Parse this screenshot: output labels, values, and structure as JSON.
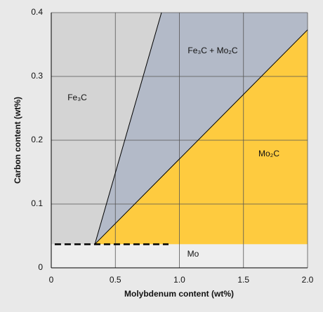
{
  "chart_data": {
    "type": "phase-diagram",
    "xlabel": "Molybdenum content (wt%)",
    "ylabel": "Carbon content (wt%)",
    "xlim": [
      0,
      2.0
    ],
    "ylim": [
      0,
      0.4
    ],
    "xticks": [
      0,
      0.5,
      {
        "value": 1.0,
        "label": "1.0"
      },
      1.5,
      {
        "value": 2.0,
        "label": "2.0"
      }
    ],
    "yticks": [
      0,
      0.1,
      0.2,
      0.3,
      0.4
    ],
    "grid": true,
    "regions": [
      {
        "name": "Fe₃C",
        "color": "#d4d4d4",
        "x": [
          0,
          0.34,
          0.86,
          0
        ],
        "y": [
          0.037,
          0.037,
          0.4,
          0.4
        ]
      },
      {
        "name": "Fe₃C + Mo₂C",
        "color": "#b3bac8",
        "x": [
          0.34,
          0.86,
          2.0,
          2.0
        ],
        "y": [
          0.037,
          0.4,
          0.4,
          0.373
        ]
      },
      {
        "name": "Mo₂C",
        "color": "#fecb3f",
        "x": [
          0.34,
          2.0,
          2.0
        ],
        "y": [
          0.037,
          0.373,
          0.037
        ]
      },
      {
        "name": "Mo",
        "color": "#eeeeee",
        "x": [
          0,
          2.0,
          2.0,
          0
        ],
        "y": [
          0,
          0,
          0.037,
          0.037
        ]
      }
    ],
    "boundaries": [
      {
        "style": "solid",
        "x": [
          0.34,
          0.86
        ],
        "y": [
          0.037,
          0.4
        ]
      },
      {
        "style": "solid",
        "x": [
          0.34,
          2.0
        ],
        "y": [
          0.037,
          0.373
        ]
      },
      {
        "style": "dashed",
        "x": [
          0.027,
          0.915
        ],
        "y": [
          0.037,
          0.037
        ]
      }
    ]
  }
}
